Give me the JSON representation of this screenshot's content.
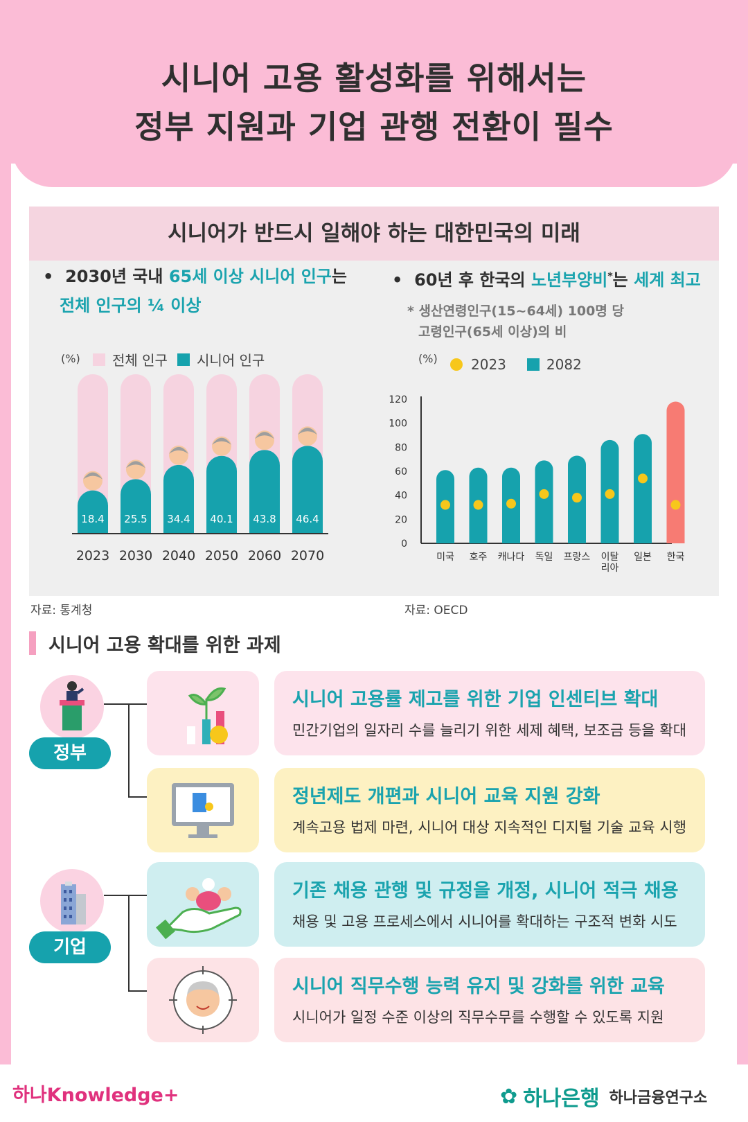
{
  "title": {
    "line1": "시니어 고용 활성화를 위해서는",
    "line2": "정부 지원과 기업 관행 전환이 필수"
  },
  "chart_section": {
    "heading": "시니어가 반드시 일해야 하는 대한민국의 미래",
    "left": {
      "bullet_pre": "2030년 국내 ",
      "bullet_hl": "65세 이상 시니어 인구",
      "bullet_post": "는",
      "bullet_line2": "전체 인구의 ¼ 이상",
      "source": "자료: 통계청"
    },
    "right": {
      "bullet_pre": "60년 후 한국의 ",
      "bullet_hl1": "노년부양비",
      "bullet_star": "*",
      "bullet_mid": "는 ",
      "bullet_hl2": "세계 최고",
      "note1": "* 생산연령인구(15~64세) 100명 당",
      "note2": "고령인구(65세 이상)의 비",
      "source": "자료: OECD"
    }
  },
  "chart_data": [
    {
      "type": "bar",
      "unit_label": "(%)",
      "categories": [
        "2023",
        "2030",
        "2040",
        "2050",
        "2060",
        "2070"
      ],
      "series": [
        {
          "name": "전체 인구",
          "values": [
            100,
            100,
            100,
            100,
            100,
            100
          ],
          "color": "#f6d3e0"
        },
        {
          "name": "시니어 인구",
          "values": [
            18.4,
            25.5,
            34.4,
            40.1,
            43.8,
            46.4
          ],
          "color": "#16a2ad"
        }
      ],
      "data_labels": [
        "18.4",
        "25.5",
        "34.4",
        "40.1",
        "43.8",
        "46.4"
      ]
    },
    {
      "type": "bar",
      "unit_label": "(%)",
      "categories": [
        "미국",
        "호주",
        "캐나다",
        "독일",
        "프랑스",
        "이탈리아",
        "일본",
        "한국"
      ],
      "series": [
        {
          "name": "2023",
          "values": [
            32,
            32,
            33,
            41,
            38,
            41,
            54,
            32
          ],
          "color": "#f7c71b"
        },
        {
          "name": "2082",
          "values": [
            61,
            63,
            63,
            69,
            73,
            86,
            91,
            118
          ],
          "color": "#16a2ad"
        }
      ],
      "highlight_category": "한국",
      "highlight_color": "#f77b73",
      "ylim": [
        0,
        120
      ],
      "yticks": [
        0,
        20,
        40,
        60,
        80,
        100,
        120
      ]
    }
  ],
  "tasks": {
    "heading": "시니어 고용 확대를 위한 과제",
    "groups": {
      "gov": "정부",
      "biz": "기업"
    },
    "items": [
      {
        "title": "시니어 고용률 제고를 위한 기업 인센티브 확대",
        "body": "민간기업의 일자리 수를 늘리기 위한 세제 혜택, 보조금 등을 확대",
        "bg": "#fde3ec"
      },
      {
        "title": "정년제도 개편과 시니어 교육 지원 강화",
        "body": "계속고용 법제 마련, 시니어 대상 지속적인 디지털 기술 교육 시행",
        "bg": "#fdf1c2"
      },
      {
        "title": "기존 채용 관행 및 규정을 개정, 시니어 적극 채용",
        "body": "채용 및 고용 프로세스에서 시니어를 확대하는 구조적 변화 시도",
        "bg": "#cfeef0"
      },
      {
        "title": "시니어 직무수행 능력 유지 및 강화를 위한 교육",
        "body": "시니어가 일정 수준 이상의 직무수무를 수행할 수 있도록 지원",
        "bg": "#fde3e6"
      }
    ]
  },
  "footer": {
    "left_brand": "하나Knowledge+",
    "right_brand": "하나은행",
    "right_sub": "하나금융연구소"
  }
}
